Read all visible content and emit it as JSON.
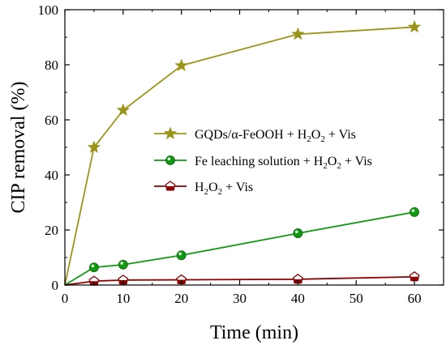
{
  "chart_data": {
    "type": "line",
    "xlabel": "Time (min)",
    "ylabel": "CIP removal (%)",
    "xlim": [
      0,
      65
    ],
    "ylim": [
      0,
      100
    ],
    "xticks": [
      0,
      10,
      20,
      30,
      40,
      50,
      60
    ],
    "yticks": [
      0,
      20,
      40,
      60,
      80,
      100
    ],
    "tick_labels_x": [
      "0",
      "10",
      "20",
      "30",
      "40",
      "50",
      "60"
    ],
    "tick_labels_y": [
      "0",
      "20",
      "40",
      "60",
      "80",
      "100"
    ],
    "legend_placement": "center-right",
    "grid": false,
    "series": [
      {
        "name": "GQDs/α-FeOOH + H2O2 + Vis",
        "legend_parts": [
          "GQDs/α-FeOOH + H",
          "2",
          "O",
          "2",
          " + Vis"
        ],
        "color": "#9a9418",
        "marker": "star",
        "x": [
          0,
          5,
          10,
          20,
          40,
          60
        ],
        "y": [
          0,
          50,
          63.5,
          79.7,
          91.1,
          93.7
        ]
      },
      {
        "name": "Fe leaching solution + H2O2 + Vis",
        "legend_parts": [
          "Fe leaching solution + H",
          "2",
          "O",
          "2",
          " + Vis"
        ],
        "color": "#119a11",
        "marker": "circle",
        "x": [
          0,
          5,
          10,
          20,
          40,
          60
        ],
        "y": [
          0,
          6.4,
          7.4,
          10.8,
          18.8,
          26.5
        ]
      },
      {
        "name": "H2O2 + Vis",
        "legend_parts": [
          "H",
          "2",
          "O",
          "2",
          " + Vis"
        ],
        "color": "#8b0000",
        "marker": "pentagon-half",
        "x": [
          0,
          5,
          10,
          20,
          40,
          60
        ],
        "y": [
          0,
          1.4,
          1.8,
          1.9,
          2.1,
          3.0
        ]
      }
    ]
  }
}
